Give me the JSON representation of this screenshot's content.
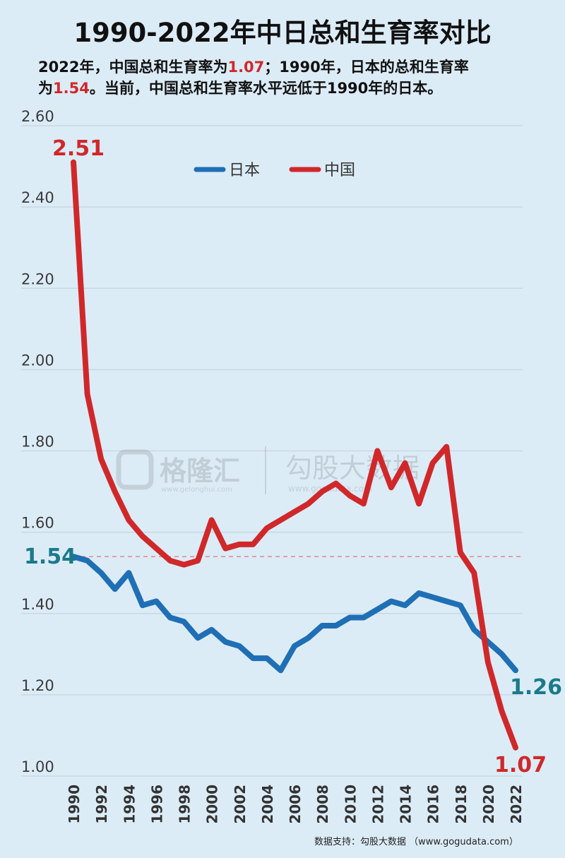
{
  "header": {
    "title": "1990-2022年中日总和生育率对比",
    "subtitle_line1_a": "2022年，中国总和生育率为",
    "subtitle_line1_b": "1.07",
    "subtitle_line1_c": "；1990年，日本的总和生育率",
    "subtitle_line2_a": "为",
    "subtitle_line2_b": "1.54",
    "subtitle_line2_c": "。当前，中国总和生育率水平远低于1990年的日本。"
  },
  "watermark": {
    "left_brand": "格隆汇",
    "left_url": "www.gelonghui.com",
    "right_brand": "勾股大数据",
    "right_url": "www.gogudata.com"
  },
  "source": "数据支持：勾股大数据 （www.gogudata.com）",
  "colors": {
    "japan": "#1f6fb5",
    "china": "#d0282a",
    "japan_label": "#1b7a8a",
    "grid": "#c9d7e2",
    "reference_line": "#e06666"
  },
  "chart_data": {
    "type": "line",
    "title": "1990-2022年中日总和生育率对比",
    "xlabel": "",
    "ylabel": "",
    "ylim": [
      1.0,
      2.6
    ],
    "y_ticks": [
      "1.00",
      "1.20",
      "1.40",
      "1.60",
      "1.80",
      "2.00",
      "2.20",
      "2.40",
      "2.60"
    ],
    "x_ticks": [
      "1990",
      "1992",
      "1994",
      "1996",
      "1998",
      "2000",
      "2002",
      "2004",
      "2006",
      "2008",
      "2010",
      "2012",
      "2014",
      "2016",
      "2018",
      "2020",
      "2022"
    ],
    "grid": true,
    "legend_position": "top-center",
    "reference_line": 1.54,
    "x": [
      1990,
      1991,
      1992,
      1993,
      1994,
      1995,
      1996,
      1997,
      1998,
      1999,
      2000,
      2001,
      2002,
      2003,
      2004,
      2005,
      2006,
      2007,
      2008,
      2009,
      2010,
      2011,
      2012,
      2013,
      2014,
      2015,
      2016,
      2017,
      2018,
      2019,
      2020,
      2021,
      2022
    ],
    "series": [
      {
        "name": "日本",
        "values": [
          1.54,
          1.53,
          1.5,
          1.46,
          1.5,
          1.42,
          1.43,
          1.39,
          1.38,
          1.34,
          1.36,
          1.33,
          1.32,
          1.29,
          1.29,
          1.26,
          1.32,
          1.34,
          1.37,
          1.37,
          1.39,
          1.39,
          1.41,
          1.43,
          1.42,
          1.45,
          1.44,
          1.43,
          1.42,
          1.36,
          1.33,
          1.3,
          1.26
        ]
      },
      {
        "name": "中国",
        "values": [
          2.51,
          1.94,
          1.78,
          1.7,
          1.63,
          1.59,
          1.56,
          1.53,
          1.52,
          1.53,
          1.63,
          1.56,
          1.57,
          1.57,
          1.61,
          1.63,
          1.65,
          1.67,
          1.7,
          1.72,
          1.69,
          1.67,
          1.8,
          1.71,
          1.77,
          1.67,
          1.77,
          1.81,
          1.55,
          1.5,
          1.28,
          1.16,
          1.07
        ]
      }
    ],
    "annotations": [
      {
        "series": "中国",
        "x": 1990,
        "text": "2.51"
      },
      {
        "series": "日本",
        "x": 1990,
        "text": "1.54"
      },
      {
        "series": "日本",
        "x": 2022,
        "text": "1.26"
      },
      {
        "series": "中国",
        "x": 2022,
        "text": "1.07"
      }
    ]
  }
}
